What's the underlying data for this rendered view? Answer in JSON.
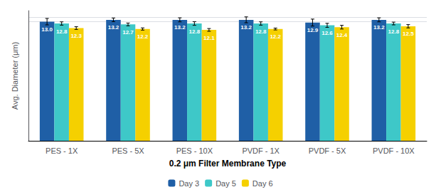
{
  "chart_data": {
    "type": "bar",
    "categories": [
      "PES - 1X",
      "PES - 5X",
      "PES - 10X",
      "PVDF - 1X",
      "PVDF - 5X",
      "PVDF - 10X"
    ],
    "series": [
      {
        "name": "Day 3",
        "color": "#1F5FA6",
        "values": [
          13.0,
          13.2,
          13.2,
          13.2,
          12.9,
          13.2
        ],
        "value_labels": [
          "13.0",
          "13.2",
          "13.2",
          "13.2",
          "12.9",
          "13.2"
        ],
        "errors": [
          0.35,
          0.2,
          0.22,
          0.32,
          0.38,
          0.22
        ]
      },
      {
        "name": "Day 5",
        "color": "#3EC8C8",
        "values": [
          12.8,
          12.7,
          12.8,
          12.8,
          12.6,
          12.8
        ],
        "value_labels": [
          "12.8",
          "12.7",
          "12.8",
          "12.8",
          "12.6",
          "12.8"
        ],
        "errors": [
          0.18,
          0.15,
          0.2,
          0.18,
          0.22,
          0.15
        ]
      },
      {
        "name": "Day 6",
        "color": "#F5D000",
        "values": [
          12.3,
          12.2,
          12.1,
          12.2,
          12.4,
          12.5
        ],
        "value_labels": [
          "12.3",
          "12.2",
          "12.1",
          "12.2",
          "12.4",
          "12.5"
        ],
        "errors": [
          0.15,
          0.12,
          0.15,
          0.1,
          0.2,
          0.18
        ]
      }
    ],
    "xlabel": "0.2 μm Filter Membrane Type",
    "ylabel": "Avg. Diameter (μm)",
    "ylim": [
      0,
      14.2
    ],
    "yticks": [
      13.0,
      13.5
    ],
    "grid": true,
    "legend": "bottom",
    "data_labels": true,
    "tick_labels": "x"
  }
}
